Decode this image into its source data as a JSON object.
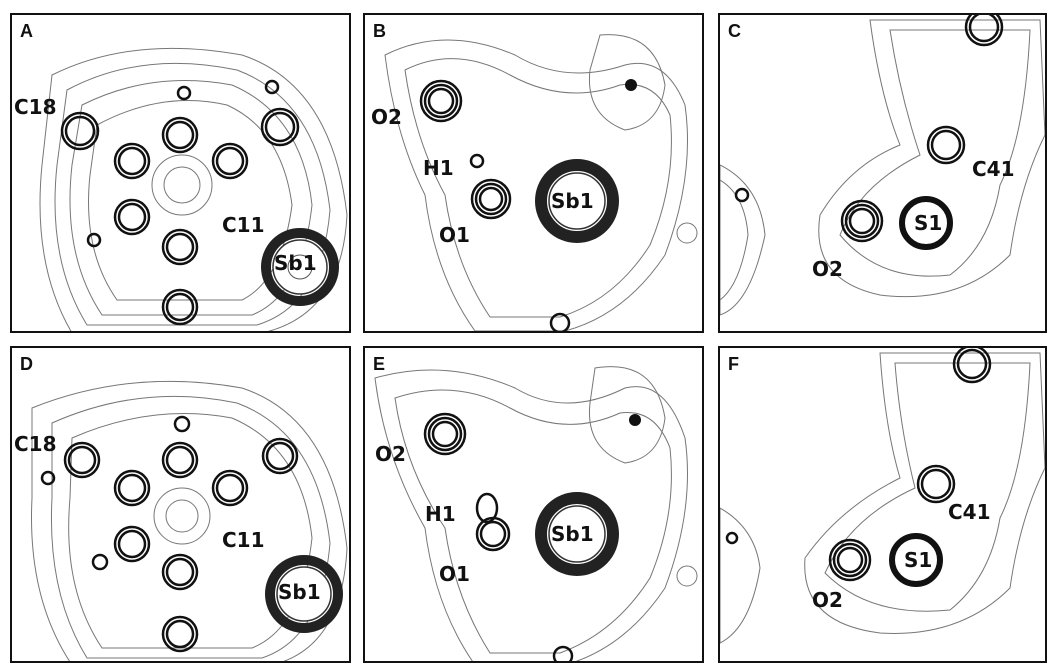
{
  "panels": [
    {
      "letter": "A",
      "labels": {
        "c18": "C18",
        "c11": "C11",
        "sb1": "Sb1"
      }
    },
    {
      "letter": "B",
      "labels": {
        "o2": "O2",
        "h1": "H1",
        "o1": "O1",
        "sb1": "Sb1"
      }
    },
    {
      "letter": "C",
      "labels": {
        "c41": "C41",
        "s1": "S1",
        "o2": "O2"
      }
    },
    {
      "letter": "D",
      "labels": {
        "c18": "C18",
        "c11": "C11",
        "sb1": "Sb1"
      }
    },
    {
      "letter": "E",
      "labels": {
        "o2": "O2",
        "h1": "H1",
        "o1": "O1",
        "sb1": "Sb1"
      }
    },
    {
      "letter": "F",
      "labels": {
        "c41": "C41",
        "s1": "S1",
        "o2": "O2"
      }
    }
  ]
}
